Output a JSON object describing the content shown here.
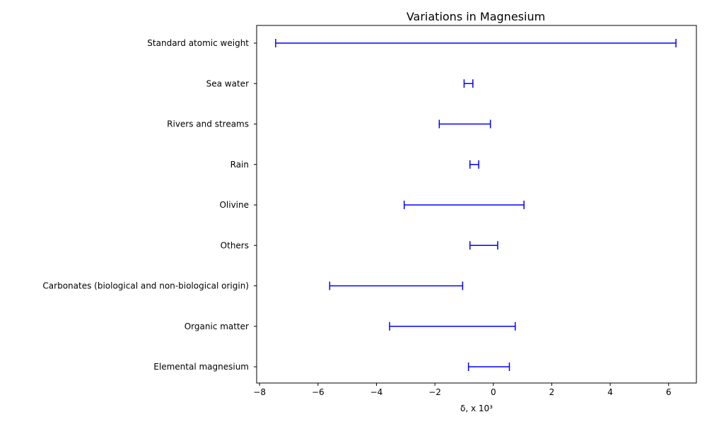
{
  "chart_data": {
    "type": "errorbar-range",
    "title": "Variations  in Magnesium",
    "xlabel": "δ, x 10³",
    "ylabel": "",
    "xlim": [
      -8.1,
      6.95
    ],
    "xticks": [
      -8,
      -6,
      -4,
      -2,
      0,
      2,
      4,
      6
    ],
    "xtick_labels": [
      "−8",
      "−6",
      "−4",
      "−2",
      "0",
      "2",
      "4",
      "6"
    ],
    "grid": false,
    "legend": false,
    "series_color": "#0000ff",
    "categories": [
      "Standard atomic weight",
      "Sea water",
      "Rivers and streams",
      "Rain",
      "Olivine",
      "Others",
      "Carbonates (biological and non-biological origin)",
      "Organic matter",
      "Elemental magnesium"
    ],
    "ranges": [
      [
        -7.45,
        6.25
      ],
      [
        -1.0,
        -0.7
      ],
      [
        -1.85,
        -0.1
      ],
      [
        -0.8,
        -0.5
      ],
      [
        -3.05,
        1.05
      ],
      [
        -0.8,
        0.15
      ],
      [
        -5.6,
        -1.05
      ],
      [
        -3.55,
        0.75
      ],
      [
        -0.85,
        0.55
      ]
    ]
  }
}
